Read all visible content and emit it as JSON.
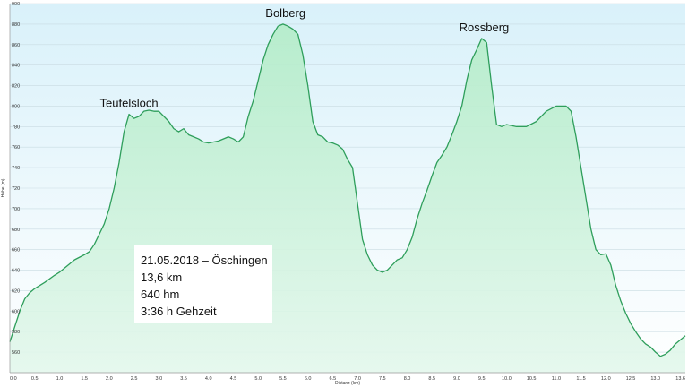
{
  "chart_data": {
    "type": "area",
    "title": "",
    "xlabel": "Distanz  (km)",
    "ylabel": "Höhe (m)",
    "xlim": [
      0,
      13.6
    ],
    "ylim": [
      540,
      900
    ],
    "grid": true,
    "legend": "none",
    "x_ticks": [
      0,
      0.5,
      1,
      1.5,
      2,
      2.5,
      3,
      3.5,
      4,
      4.5,
      5,
      5.5,
      6,
      6.5,
      7,
      7.5,
      8,
      8.5,
      9,
      9.5,
      10,
      10.5,
      11,
      11.5,
      12,
      12.5,
      13,
      13.6
    ],
    "x_tick_labels": [
      "0.0",
      "0.5",
      "1.0",
      "1.5",
      "2.0",
      "2.5",
      "3.0",
      "3.5",
      "4.0",
      "4.5",
      "5.0",
      "5.5",
      "6.0",
      "6.5",
      "7.0",
      "7.5",
      "8.0",
      "8.5",
      "9.0",
      "9.5",
      "10.0",
      "10.5",
      "11.0",
      "11.5",
      "12.0",
      "12.5",
      "13.0",
      "13.6"
    ],
    "y_ticks": [
      560,
      580,
      600,
      620,
      640,
      660,
      680,
      700,
      720,
      740,
      760,
      780,
      800,
      820,
      840,
      860,
      880,
      900
    ],
    "colors": {
      "line": "#2e9e5b",
      "fill_top": "#b3ecc8",
      "fill_bottom": "#e3f7ec",
      "background_top": "#d9f1fa",
      "background_bottom": "#ffffff",
      "grid": "#c9dbe2"
    },
    "series": [
      {
        "x": [
          0,
          0.1,
          0.2,
          0.3,
          0.4,
          0.5,
          0.7,
          0.9,
          1.0,
          1.1,
          1.2,
          1.3,
          1.5,
          1.6,
          1.7,
          1.8,
          1.9,
          2.0,
          2.1,
          2.2,
          2.3,
          2.4,
          2.5,
          2.6,
          2.7,
          2.8,
          2.9,
          3.0,
          3.1,
          3.2,
          3.3,
          3.4,
          3.5,
          3.6,
          3.7,
          3.8,
          3.9,
          4.0,
          4.2,
          4.4,
          4.5,
          4.6,
          4.7,
          4.8,
          4.9,
          5.0,
          5.1,
          5.2,
          5.3,
          5.4,
          5.5,
          5.6,
          5.7,
          5.8,
          5.9,
          6.0,
          6.1,
          6.2,
          6.3,
          6.4,
          6.5,
          6.6,
          6.7,
          6.8,
          6.9,
          7.0,
          7.1,
          7.2,
          7.3,
          7.4,
          7.5,
          7.6,
          7.7,
          7.8,
          7.9,
          8.0,
          8.1,
          8.2,
          8.3,
          8.4,
          8.5,
          8.6,
          8.7,
          8.8,
          8.9,
          9.0,
          9.1,
          9.2,
          9.3,
          9.4,
          9.5,
          9.6,
          9.7,
          9.8,
          9.9,
          10.0,
          10.2,
          10.4,
          10.6,
          10.8,
          11.0,
          11.2,
          11.3,
          11.4,
          11.5,
          11.6,
          11.7,
          11.8,
          11.9,
          12.0,
          12.1,
          12.2,
          12.3,
          12.4,
          12.5,
          12.6,
          12.7,
          12.8,
          12.9,
          13.0,
          13.1,
          13.2,
          13.3,
          13.4,
          13.5,
          13.6
        ],
        "y": [
          570,
          585,
          600,
          612,
          618,
          622,
          628,
          635,
          638,
          642,
          646,
          650,
          655,
          658,
          665,
          675,
          685,
          700,
          720,
          745,
          775,
          792,
          788,
          790,
          795,
          796,
          795,
          795,
          790,
          785,
          778,
          775,
          778,
          772,
          770,
          768,
          765,
          764,
          766,
          770,
          768,
          765,
          770,
          790,
          805,
          825,
          845,
          860,
          870,
          878,
          880,
          878,
          875,
          870,
          850,
          820,
          785,
          772,
          770,
          765,
          764,
          762,
          758,
          748,
          740,
          705,
          670,
          655,
          645,
          640,
          638,
          640,
          645,
          650,
          652,
          660,
          672,
          690,
          705,
          718,
          732,
          745,
          752,
          760,
          772,
          785,
          800,
          825,
          845,
          855,
          866,
          862,
          820,
          782,
          780,
          782,
          780,
          780,
          785,
          795,
          800,
          800,
          795,
          770,
          740,
          710,
          680,
          660,
          655,
          656,
          645,
          625,
          610,
          598,
          588,
          580,
          573,
          568,
          565,
          560,
          556,
          558,
          562,
          568,
          572,
          576
        ]
      }
    ],
    "annotations": [
      {
        "label": "Teufelsloch",
        "x": 2.4,
        "y": 792
      },
      {
        "label": "Bolberg",
        "x": 5.55,
        "y": 880
      },
      {
        "label": "Rossberg",
        "x": 9.55,
        "y": 866
      }
    ]
  },
  "info_box": {
    "lines": [
      "21.05.2018 – Öschingen",
      "13,6 km",
      "640 hm",
      "3:36 h Gehzeit"
    ]
  }
}
